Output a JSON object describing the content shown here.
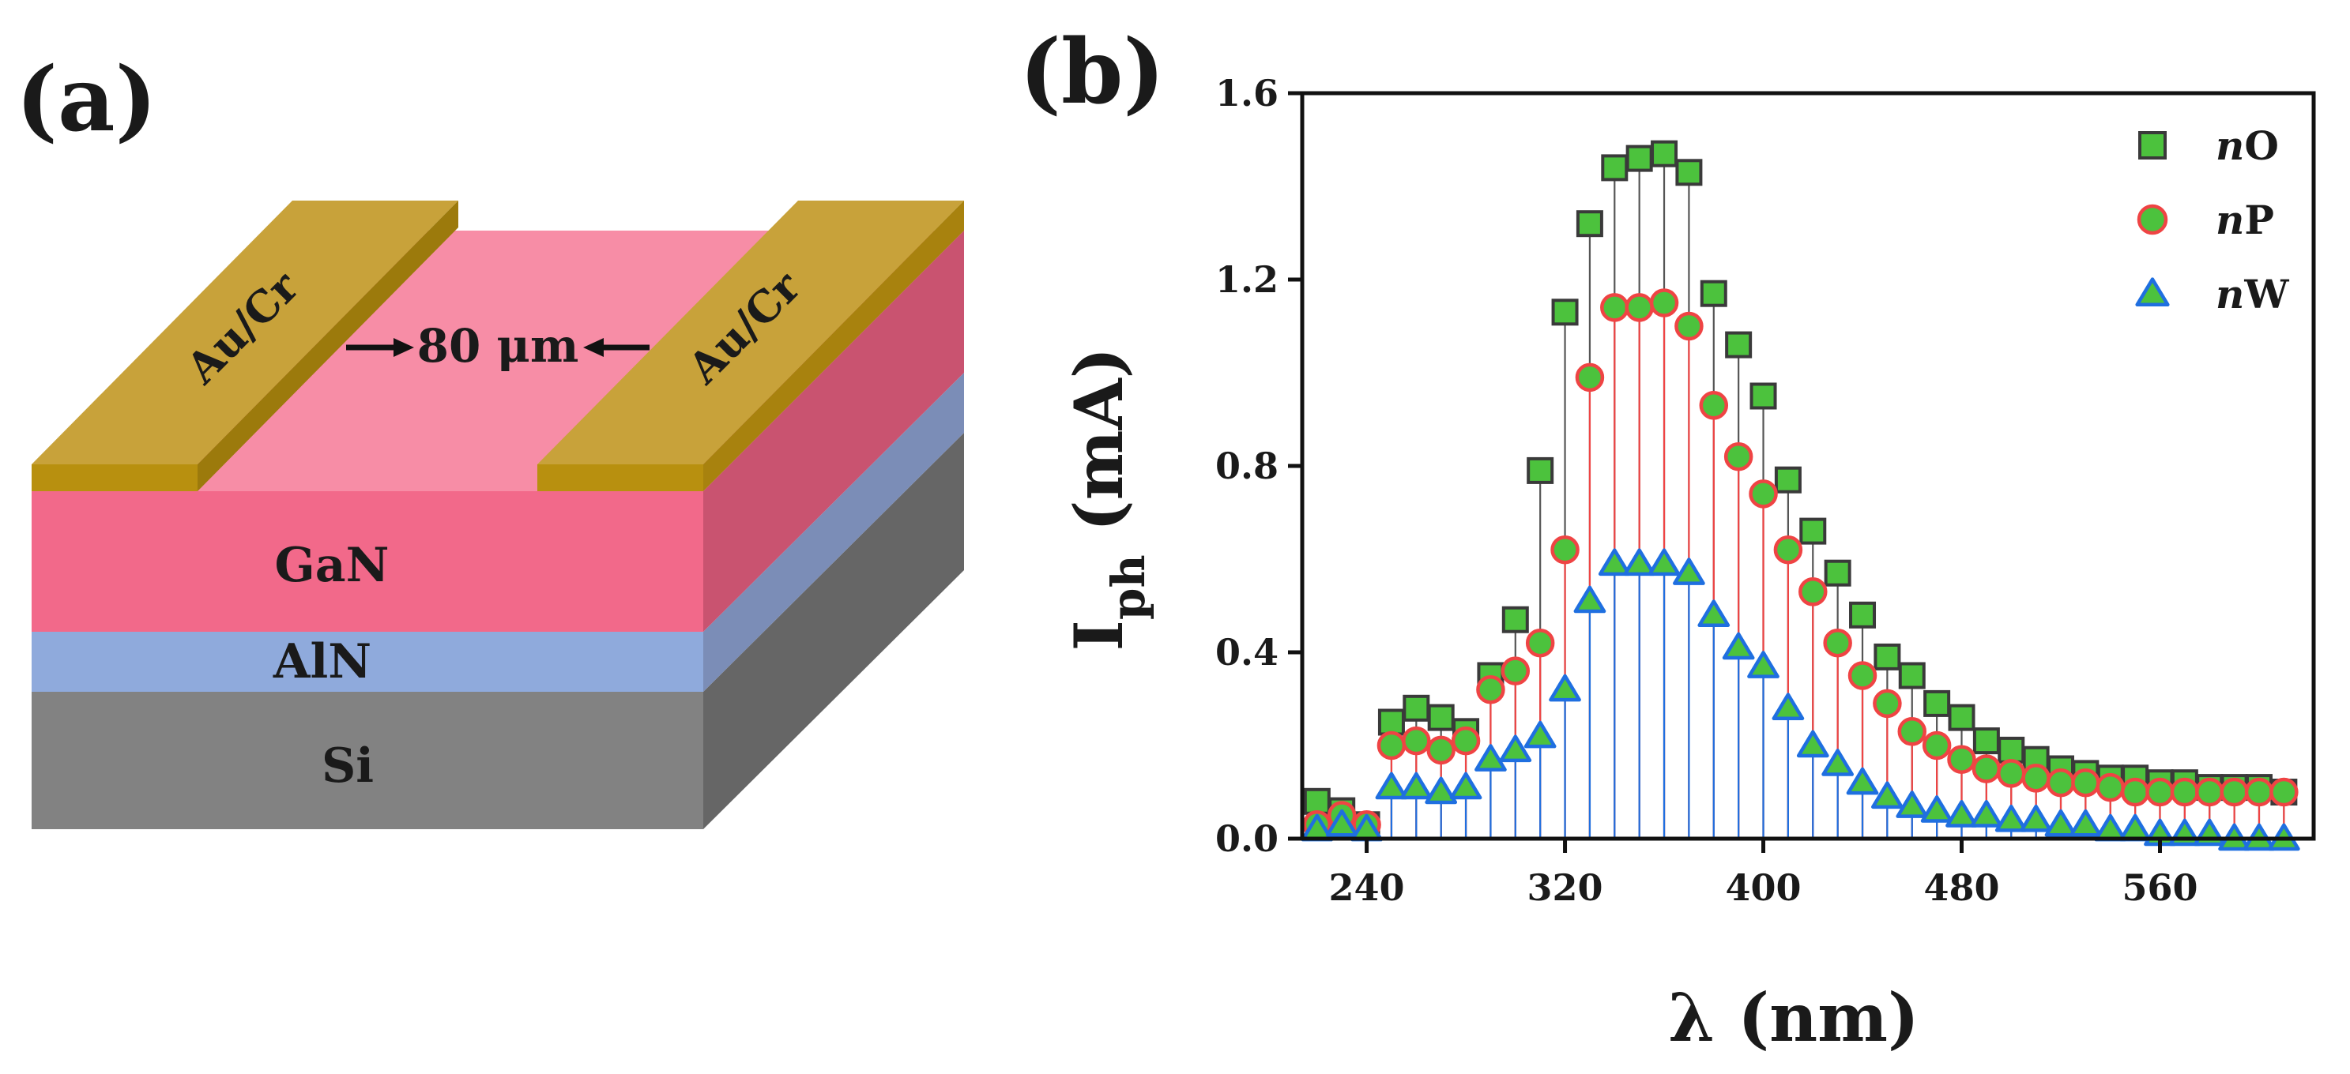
{
  "panel_a": {
    "label": "(a)",
    "electrode_left": "Au/Cr",
    "electrode_right": "Au/Cr",
    "gap": "80 μm",
    "layers": [
      "GaN",
      "AlN",
      "Si"
    ],
    "colors": {
      "gold_top": "#c8a23a",
      "gold_front": "#b8900f",
      "gan_top": "#f78da6",
      "gan_front": "#f2698a",
      "gan_side": "#c95370",
      "aln_front": "#8faadc",
      "aln_side": "#7b8db7",
      "si_front": "#828282",
      "si_side": "#666666"
    }
  },
  "panel_b": {
    "label": "(b)"
  },
  "chart_data": {
    "type": "scatter",
    "style": "stem",
    "title": "",
    "xlabel": "λ (nm)",
    "ylabel": "Iph (mA)",
    "ylabel_main": "I",
    "ylabel_sub": "ph",
    "ylabel_unit": " (mA)",
    "xlim": [
      214,
      622
    ],
    "ylim": [
      0.0,
      1.6
    ],
    "xticks": [
      240,
      320,
      400,
      480,
      560
    ],
    "xtick_labels": [
      "240",
      "320",
      "400",
      "480",
      "560"
    ],
    "yticks": [
      0.0,
      0.4,
      0.8,
      1.2,
      1.6
    ],
    "ytick_labels": [
      "0.0",
      "0.4",
      "0.8",
      "1.2",
      "1.6"
    ],
    "legend_position": "top-right",
    "x": [
      220,
      230,
      240,
      250,
      260,
      270,
      280,
      290,
      300,
      310,
      320,
      330,
      340,
      350,
      360,
      370,
      380,
      390,
      400,
      410,
      420,
      430,
      440,
      450,
      460,
      470,
      480,
      490,
      500,
      510,
      520,
      530,
      540,
      550,
      560,
      570,
      580,
      590,
      600,
      610
    ],
    "series": [
      {
        "name_prefix": "n",
        "name_suffix": "O",
        "name": "nO",
        "marker": "square",
        "fill": "#4cc23d",
        "edge": "#3a3a3a",
        "stem": "#555555",
        "values": [
          0.08,
          0.06,
          0.03,
          0.25,
          0.28,
          0.26,
          0.23,
          0.35,
          0.47,
          0.79,
          1.13,
          1.32,
          1.44,
          1.46,
          1.47,
          1.43,
          1.17,
          1.06,
          0.95,
          0.77,
          0.66,
          0.57,
          0.48,
          0.39,
          0.35,
          0.29,
          0.26,
          0.21,
          0.19,
          0.17,
          0.15,
          0.14,
          0.13,
          0.13,
          0.12,
          0.12,
          0.11,
          0.11,
          0.11,
          0.1
        ]
      },
      {
        "name_prefix": "n",
        "name_suffix": "P",
        "name": "nP",
        "marker": "circle",
        "fill": "#4cc23d",
        "edge": "#ef4444",
        "stem": "#ef4444",
        "values": [
          0.03,
          0.05,
          0.03,
          0.2,
          0.21,
          0.19,
          0.21,
          0.32,
          0.36,
          0.42,
          0.62,
          0.99,
          1.14,
          1.14,
          1.15,
          1.1,
          0.93,
          0.82,
          0.74,
          0.62,
          0.53,
          0.42,
          0.35,
          0.29,
          0.23,
          0.2,
          0.17,
          0.15,
          0.14,
          0.13,
          0.12,
          0.12,
          0.11,
          0.1,
          0.1,
          0.1,
          0.1,
          0.1,
          0.1,
          0.1
        ]
      },
      {
        "name_prefix": "n",
        "name_suffix": "W",
        "name": "nW",
        "marker": "triangle",
        "fill": "#4cc23d",
        "edge": "#1f6fe0",
        "stem": "#1f6fe0",
        "values": [
          0.02,
          0.03,
          0.02,
          0.11,
          0.11,
          0.1,
          0.11,
          0.17,
          0.19,
          0.22,
          0.32,
          0.51,
          0.59,
          0.59,
          0.59,
          0.57,
          0.48,
          0.41,
          0.37,
          0.28,
          0.2,
          0.16,
          0.12,
          0.09,
          0.07,
          0.06,
          0.05,
          0.05,
          0.04,
          0.04,
          0.03,
          0.03,
          0.02,
          0.02,
          0.01,
          0.01,
          0.01,
          0.0,
          0.0,
          0.0
        ]
      }
    ]
  }
}
